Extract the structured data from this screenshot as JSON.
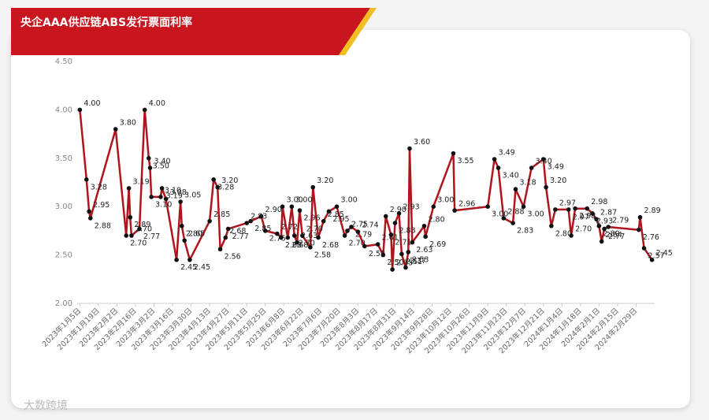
{
  "chart_data": {
    "type": "line",
    "title": "央企AAA供应链ABS发行票面利率",
    "watermark": "大数跨境",
    "color": "#b0141c",
    "marker_color": "#111111",
    "xlim": [
      "2023-01-03",
      "2024-03-14"
    ],
    "ylim": [
      2,
      4.5
    ],
    "yticks": [
      {
        "value": 2,
        "label": "2.00"
      },
      {
        "value": 2.5,
        "label": "2.50"
      },
      {
        "value": 3,
        "label": "3.00"
      },
      {
        "value": 3.5,
        "label": "3.50"
      },
      {
        "value": 4,
        "label": "4.00"
      },
      {
        "value": 4.5,
        "label": "4.50"
      }
    ],
    "xticks": [
      {
        "value": "2023-01-05",
        "label": "2023年1月5日"
      },
      {
        "value": "2023-01-19",
        "label": "2023年1月19日"
      },
      {
        "value": "2023-02-02",
        "label": "2023年2月2日"
      },
      {
        "value": "2023-02-16",
        "label": "2023年2月16日"
      },
      {
        "value": "2023-03-02",
        "label": "2023年3月2日"
      },
      {
        "value": "2023-03-16",
        "label": "2023年3月16日"
      },
      {
        "value": "2023-03-30",
        "label": "2023年3月30日"
      },
      {
        "value": "2023-04-13",
        "label": "2023年4月13日"
      },
      {
        "value": "2023-04-27",
        "label": "2023年4月27日"
      },
      {
        "value": "2023-05-11",
        "label": "2023年5月11日"
      },
      {
        "value": "2023-05-25",
        "label": "2023年5月25日"
      },
      {
        "value": "2023-06-08",
        "label": "2023年6月8日"
      },
      {
        "value": "2023-06-22",
        "label": "2023年6月22日"
      },
      {
        "value": "2023-07-06",
        "label": "2023年7月6日"
      },
      {
        "value": "2023-07-20",
        "label": "2023年7月20日"
      },
      {
        "value": "2023-08-03",
        "label": "2023年8月3日"
      },
      {
        "value": "2023-08-17",
        "label": "2023年8月17日"
      },
      {
        "value": "2023-08-31",
        "label": "2023年8月31日"
      },
      {
        "value": "2023-09-14",
        "label": "2023年9月14日"
      },
      {
        "value": "2023-09-28",
        "label": "2023年9月28日"
      },
      {
        "value": "2023-10-12",
        "label": "2023年10月12日"
      },
      {
        "value": "2023-10-26",
        "label": "2023年10月26日"
      },
      {
        "value": "2023-11-09",
        "label": "2023年11月9日"
      },
      {
        "value": "2023-11-23",
        "label": "2023年11月23日"
      },
      {
        "value": "2023-12-07",
        "label": "2023年12月7日"
      },
      {
        "value": "2023-12-21",
        "label": "2023年12月21日"
      },
      {
        "value": "2024-01-04",
        "label": "2024年1月4日"
      },
      {
        "value": "2024-01-18",
        "label": "2024年1月18日"
      },
      {
        "value": "2024-02-01",
        "label": "2024年2月1日"
      },
      {
        "value": "2024-02-15",
        "label": "2024年2月15日"
      },
      {
        "value": "2024-02-29",
        "label": "2024年2月29日"
      }
    ],
    "x": [
      "2023-01-05",
      "2023-01-10",
      "2023-01-12",
      "2023-01-13",
      "2023-02-01",
      "2023-02-09",
      "2023-02-11",
      "2023-02-12",
      "2023-02-13",
      "2023-02-19",
      "2023-02-23",
      "2023-02-26",
      "2023-02-27",
      "2023-02-28",
      "2023-03-07",
      "2023-03-08",
      "2023-03-11",
      "2023-03-19",
      "2023-03-22",
      "2023-03-23",
      "2023-03-25",
      "2023-03-29",
      "2023-04-13",
      "2023-04-16",
      "2023-04-19",
      "2023-04-21",
      "2023-04-25",
      "2023-04-27",
      "2023-05-11",
      "2023-05-14",
      "2023-05-22",
      "2023-05-25",
      "2023-06-03",
      "2023-06-06",
      "2023-06-07",
      "2023-06-11",
      "2023-06-14",
      "2023-06-16",
      "2023-06-18",
      "2023-06-20",
      "2023-06-22",
      "2023-06-28",
      "2023-06-30",
      "2023-07-04",
      "2023-07-08",
      "2023-07-12",
      "2023-07-18",
      "2023-07-24",
      "2023-07-26",
      "2023-07-29",
      "2023-08-03",
      "2023-08-08",
      "2023-08-18",
      "2023-08-22",
      "2023-08-24",
      "2023-08-28",
      "2023-08-29",
      "2023-08-31",
      "2023-09-03",
      "2023-09-05",
      "2023-09-08",
      "2023-09-10",
      "2023-09-11",
      "2023-09-13",
      "2023-09-22",
      "2023-09-23",
      "2023-09-29",
      "2023-10-14",
      "2023-10-15",
      "2023-11-09",
      "2023-11-14",
      "2023-11-17",
      "2023-11-21",
      "2023-11-28",
      "2023-11-30",
      "2023-12-06",
      "2023-12-12",
      "2023-12-21",
      "2023-12-23",
      "2023-12-27",
      "2023-12-30",
      "2024-01-09",
      "2024-01-11",
      "2024-01-14",
      "2024-01-23",
      "2024-01-27",
      "2024-01-30",
      "2024-02-01",
      "2024-02-03",
      "2024-02-05",
      "2024-02-08",
      "2024-03-02",
      "2024-03-03",
      "2024-03-06",
      "2024-03-12"
    ],
    "values": [
      4,
      3.28,
      2.95,
      2.88,
      3.8,
      2.7,
      3.19,
      2.89,
      2.7,
      2.77,
      4,
      3.5,
      3.4,
      3.1,
      3.1,
      3.19,
      3.08,
      2.45,
      3.05,
      2.8,
      2.65,
      2.45,
      2.85,
      3.28,
      3.2,
      2.56,
      2.68,
      2.77,
      2.83,
      2.85,
      2.9,
      2.75,
      2.72,
      2.68,
      3,
      2.68,
      3,
      2.7,
      2.63,
      2.96,
      2.7,
      2.58,
      3.2,
      2.68,
      2.85,
      2.95,
      3,
      2.7,
      2.75,
      2.79,
      2.74,
      2.59,
      2.61,
      2.5,
      2.9,
      2.71,
      2.35,
      2.83,
      2.93,
      2.51,
      2.37,
      2.53,
      3.6,
      2.63,
      2.8,
      2.69,
      3,
      3.55,
      2.96,
      3,
      3.49,
      3.4,
      2.88,
      2.83,
      3.18,
      3,
      3.4,
      3.49,
      3.2,
      2.8,
      2.97,
      2.97,
      2.7,
      2.98,
      2.98,
      2.93,
      2.87,
      2.8,
      2.64,
      2.77,
      2.79,
      2.76,
      2.89,
      2.57,
      2.45
    ],
    "value_labels": [
      "4.00",
      "3.28",
      "2.95",
      "2.88",
      "3.80",
      "2.70",
      "3.19",
      "2.89",
      "2.70",
      "2.77",
      "4.00",
      "3.50",
      "3.40",
      "3.10",
      "3.10",
      "3.19",
      "3.08",
      "2.45",
      "3.05",
      "2.80",
      "2.65",
      "2.45",
      "2.85",
      "3.28",
      "3.20",
      "2.56",
      "2.68",
      "2.77",
      "2.83",
      "2.85",
      "2.90",
      "2.75",
      "2.72",
      "2.68",
      "3.00",
      "2.68",
      "3.00",
      "2.70",
      "2.63",
      "2.96",
      "2.70",
      "2.58",
      "3.20",
      "2.68",
      "2.85",
      "2.95",
      "3.00",
      "2.70",
      "2.75",
      "2.79",
      "2.74",
      "2.59",
      "2.61",
      "2.50",
      "2.90",
      "2.71",
      "2.35",
      "2.83",
      "2.93",
      "2.51",
      "2.37",
      "2.53",
      "3.60",
      "2.63",
      "2.80",
      "2.69",
      "3.00",
      "3.55",
      "2.96",
      "3.00",
      "3.49",
      "3.40",
      "2.88",
      "2.83",
      "3.18",
      "3.00",
      "3.40",
      "3.49",
      "3.20",
      "2.80",
      "2.97",
      "2.97",
      "2.70",
      "2.98",
      "2.98",
      "2.93",
      "2.87",
      "2.80",
      "2.64",
      "2.77",
      "2.79",
      "2.76",
      "2.89",
      "2.57",
      "2.45"
    ]
  }
}
